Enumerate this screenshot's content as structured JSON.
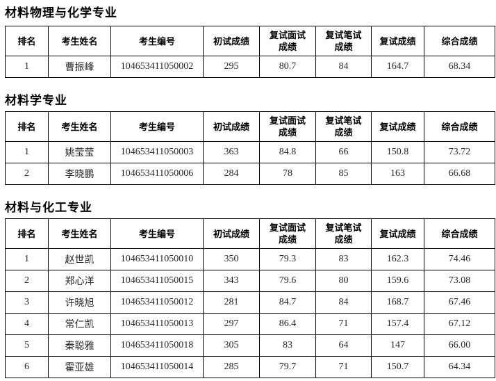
{
  "columns": [
    "排名",
    "考生姓名",
    "考生编号",
    "初试成绩",
    "复试面试\n成绩",
    "复试笔试\n成绩",
    "复试成绩",
    "综合成绩"
  ],
  "sections": [
    {
      "title": "材料物理与化学专业",
      "rows": [
        [
          "1",
          "曹振峰",
          "104653411050002",
          "295",
          "80.7",
          "84",
          "164.7",
          "68.34"
        ]
      ]
    },
    {
      "title": "材料学专业",
      "rows": [
        [
          "1",
          "姚莹莹",
          "104653411050003",
          "363",
          "84.8",
          "66",
          "150.8",
          "73.72"
        ],
        [
          "2",
          "李晓鹏",
          "104653411050006",
          "284",
          "78",
          "85",
          "163",
          "66.68"
        ]
      ]
    },
    {
      "title": "材料与化工专业",
      "rows": [
        [
          "1",
          "赵世凯",
          "104653411050010",
          "350",
          "79.3",
          "83",
          "162.3",
          "74.46"
        ],
        [
          "2",
          "郑心洋",
          "104653411050015",
          "343",
          "79.6",
          "80",
          "159.6",
          "73.08"
        ],
        [
          "3",
          "许晓旭",
          "104653411050012",
          "281",
          "84.7",
          "84",
          "168.7",
          "67.46"
        ],
        [
          "4",
          "常仁凯",
          "104653411050013",
          "297",
          "86.4",
          "71",
          "157.4",
          "67.12"
        ],
        [
          "5",
          "秦聪雅",
          "104653411050018",
          "305",
          "83",
          "64",
          "147",
          "66.00"
        ],
        [
          "6",
          "霍亚雄",
          "104653411050014",
          "285",
          "79.7",
          "71",
          "150.7",
          "64.34"
        ]
      ]
    }
  ]
}
